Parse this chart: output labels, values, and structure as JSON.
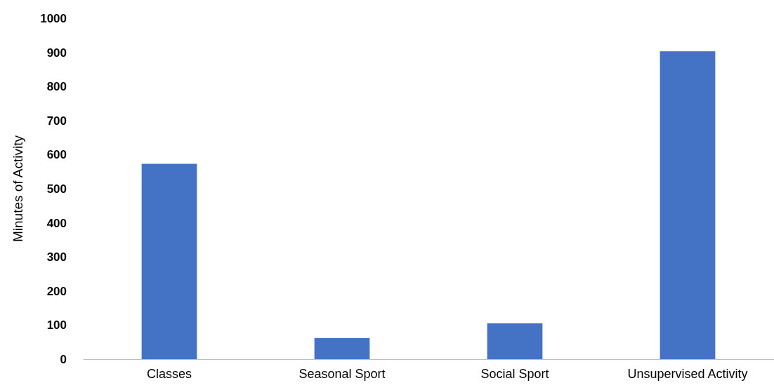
{
  "chart_data": {
    "type": "bar",
    "ylabel": "Minutes of Activity",
    "categories": [
      "Classes",
      "Seasonal Sport",
      "Social Sport",
      "Unsupervised Activity"
    ],
    "values": [
      573,
      62,
      105,
      903
    ],
    "color": "#4472c4",
    "ylim": [
      0,
      1000
    ],
    "yticks": [
      0,
      100,
      200,
      300,
      400,
      500,
      600,
      700,
      800,
      900,
      1000
    ],
    "grid": false
  }
}
